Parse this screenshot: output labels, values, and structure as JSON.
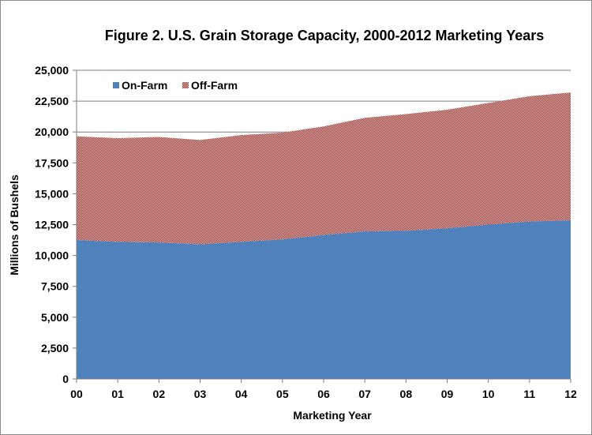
{
  "chart_data": {
    "type": "area",
    "stacked": true,
    "title": "Figure 2. U.S. Grain Storage Capacity, 2000-2012 Marketing Years",
    "xlabel": "Marketing Year",
    "ylabel": "Millions of Bushels",
    "categories": [
      "00",
      "01",
      "02",
      "03",
      "04",
      "05",
      "06",
      "07",
      "08",
      "09",
      "10",
      "11",
      "12"
    ],
    "ylim": [
      0,
      25000
    ],
    "yticks": [
      "0",
      "2,500",
      "5,000",
      "7,500",
      "10,000",
      "12,500",
      "15,000",
      "17,500",
      "20,000",
      "22,500",
      "25,000"
    ],
    "ytick_values": [
      0,
      2500,
      5000,
      7500,
      10000,
      12500,
      15000,
      17500,
      20000,
      22500,
      25000
    ],
    "grid": "horizontal",
    "legend_position": "top-left",
    "series": [
      {
        "name": "On-Farm",
        "color": "#4f81bd",
        "values": [
          11250,
          11100,
          11050,
          10900,
          11100,
          11300,
          11650,
          11950,
          12000,
          12200,
          12500,
          12750,
          12850
        ]
      },
      {
        "name": "Off-Farm",
        "color": "#c0504d",
        "pattern": "checkered",
        "values": [
          8400,
          8400,
          8550,
          8450,
          8650,
          8650,
          8800,
          9200,
          9450,
          9600,
          9850,
          10150,
          10350
        ]
      }
    ]
  }
}
